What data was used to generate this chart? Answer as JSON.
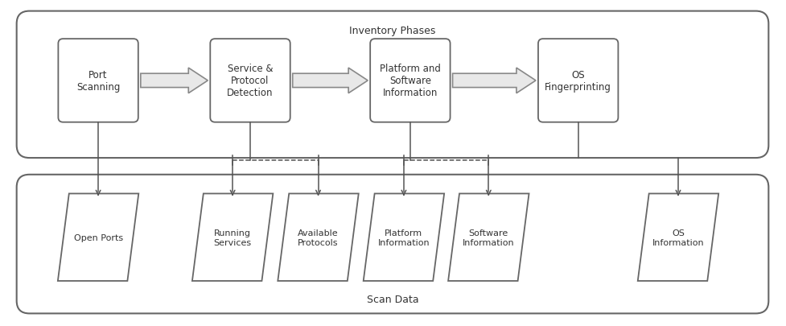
{
  "bg_color": "#ffffff",
  "panel_fc": "#ffffff",
  "panel_ec": "#666666",
  "box_ec": "#666666",
  "box_fc": "#ffffff",
  "text_color": "#333333",
  "arrow_fc": "#e8e8e8",
  "arrow_ec": "#888888",
  "line_color": "#555555",
  "top_label": "Inventory Phases",
  "bottom_label": "Scan Data",
  "phase_labels": [
    "Port\nScanning",
    "Service &\nProtocol\nDetection",
    "Platform and\nSoftware\nInformation",
    "OS\nFingerprinting"
  ],
  "output_labels": [
    "Open Ports",
    "Running\nServices",
    "Available\nProtocols",
    "Platform\nInformation",
    "Software\nInformation",
    "OS\nInformation"
  ],
  "figsize": [
    9.77,
    4.06
  ],
  "dpi": 100
}
